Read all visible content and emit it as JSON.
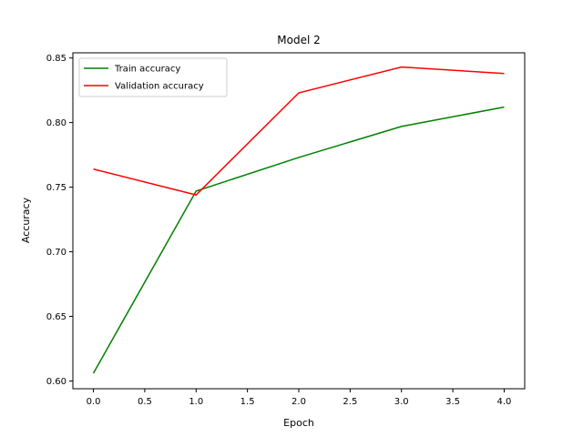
{
  "chart_data": {
    "type": "line",
    "title": "Model 2",
    "xlabel": "Epoch",
    "ylabel": "Accuracy",
    "x": [
      0,
      1,
      2,
      3,
      4
    ],
    "xlim": [
      -0.2,
      4.2
    ],
    "ylim": [
      0.594,
      0.854
    ],
    "xticks": [
      0.0,
      0.5,
      1.0,
      1.5,
      2.0,
      2.5,
      3.0,
      3.5,
      4.0
    ],
    "xtick_labels": [
      "0.0",
      "0.5",
      "1.0",
      "1.5",
      "2.0",
      "2.5",
      "3.0",
      "3.5",
      "4.0"
    ],
    "yticks": [
      0.6,
      0.65,
      0.7,
      0.75,
      0.8,
      0.85
    ],
    "ytick_labels": [
      "0.60",
      "0.65",
      "0.70",
      "0.75",
      "0.80",
      "0.85"
    ],
    "grid": false,
    "legend_position": "top-left",
    "series": [
      {
        "name": "Train accuracy",
        "color": "#008000",
        "values": [
          0.606,
          0.747,
          0.773,
          0.797,
          0.812
        ]
      },
      {
        "name": "Validation accuracy",
        "color": "#ff0000",
        "values": [
          0.764,
          0.744,
          0.823,
          0.843,
          0.838
        ]
      }
    ]
  }
}
